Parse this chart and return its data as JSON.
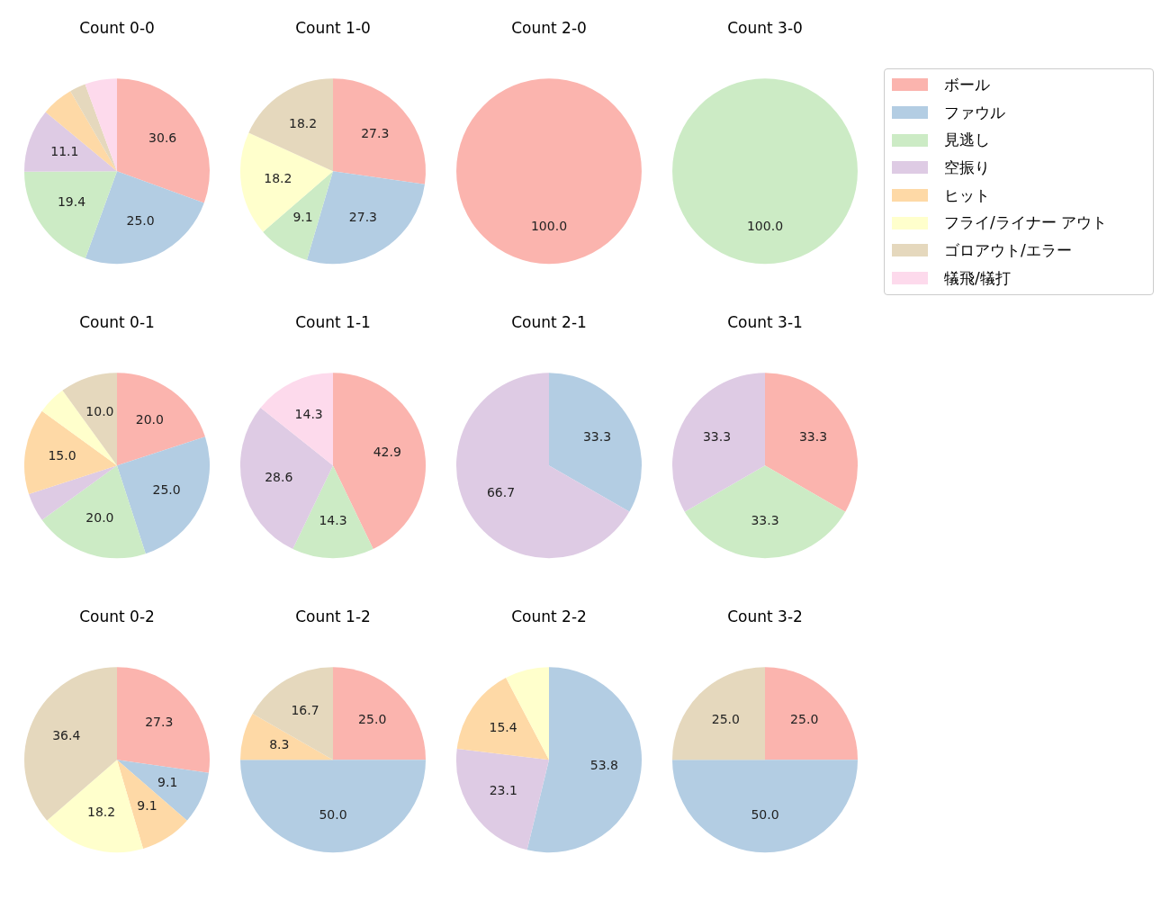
{
  "chart_data": [
    {
      "type": "pie",
      "title": "Count 0-0",
      "legend": "right",
      "categories": [
        "ボール",
        "ファウル",
        "見逃し",
        "空振り",
        "ヒット",
        "フライ/ライナー アウト",
        "ゴロアウト/エラー",
        "犠飛/犠打"
      ],
      "values": [
        30.6,
        25.0,
        19.4,
        11.1,
        5.6,
        0,
        2.8,
        5.6
      ],
      "colors": [
        "#fbb4ae",
        "#b3cde3",
        "#ccebc5",
        "#decbe4",
        "#fed9a6",
        "#ffffcc",
        "#e5d8bd",
        "#fddaec"
      ],
      "value_labels": [
        "30.6",
        "25.0",
        "19.4",
        "11.1",
        null,
        null,
        null,
        null
      ]
    },
    {
      "type": "pie",
      "title": "Count 1-0",
      "categories": [
        null,
        null,
        null,
        null,
        null,
        null,
        null,
        null
      ],
      "values": [
        27.3,
        27.3,
        9.1,
        0,
        0,
        18.2,
        18.2,
        0
      ],
      "colors": [
        "#fbb4ae",
        "#b3cde3",
        "#ccebc5",
        "#decbe4",
        "#fed9a6",
        "#ffffcc",
        "#e5d8bd",
        "#fddaec"
      ],
      "value_labels": [
        "27.3",
        "27.3",
        "9.1",
        null,
        null,
        "18.2",
        "18.2",
        null
      ]
    },
    {
      "type": "pie",
      "title": "Count 2-0",
      "categories": [
        null,
        null,
        null,
        null,
        null,
        null,
        null,
        null
      ],
      "values": [
        100.0,
        0,
        0,
        0,
        0,
        0,
        0,
        0
      ],
      "colors": [
        "#fbb4ae",
        "#b3cde3",
        "#ccebc5",
        "#decbe4",
        "#fed9a6",
        "#ffffcc",
        "#e5d8bd",
        "#fddaec"
      ],
      "value_labels": [
        "100.0",
        null,
        null,
        null,
        null,
        null,
        null,
        null
      ]
    },
    {
      "type": "pie",
      "title": "Count 3-0",
      "categories": [
        null,
        null,
        null,
        null,
        null,
        null,
        null,
        null
      ],
      "values": [
        0,
        0,
        100.0,
        0,
        0,
        0,
        0,
        0
      ],
      "colors": [
        "#fbb4ae",
        "#b3cde3",
        "#ccebc5",
        "#decbe4",
        "#fed9a6",
        "#ffffcc",
        "#e5d8bd",
        "#fddaec"
      ],
      "value_labels": [
        null,
        null,
        "100.0",
        null,
        null,
        null,
        null,
        null
      ]
    },
    {
      "type": "pie",
      "title": "Count 0-1",
      "categories": [
        null,
        null,
        null,
        null,
        null,
        null,
        null,
        null
      ],
      "values": [
        20.0,
        25.0,
        20.0,
        5.0,
        15.0,
        5.0,
        10.0,
        0
      ],
      "colors": [
        "#fbb4ae",
        "#b3cde3",
        "#ccebc5",
        "#decbe4",
        "#fed9a6",
        "#ffffcc",
        "#e5d8bd",
        "#fddaec"
      ],
      "value_labels": [
        "20.0",
        "25.0",
        "20.0",
        null,
        "15.0",
        null,
        "10.0",
        null
      ]
    },
    {
      "type": "pie",
      "title": "Count 1-1",
      "categories": [
        null,
        null,
        null,
        null,
        null,
        null,
        null,
        null
      ],
      "values": [
        42.9,
        0,
        14.3,
        28.6,
        0,
        0,
        0,
        14.3
      ],
      "colors": [
        "#fbb4ae",
        "#b3cde3",
        "#ccebc5",
        "#decbe4",
        "#fed9a6",
        "#ffffcc",
        "#e5d8bd",
        "#fddaec"
      ],
      "value_labels": [
        "42.9",
        null,
        "14.3",
        "28.6",
        null,
        null,
        null,
        "14.3"
      ]
    },
    {
      "type": "pie",
      "title": "Count 2-1",
      "categories": [
        null,
        null,
        null,
        null,
        null,
        null,
        null,
        null
      ],
      "values": [
        0,
        33.3,
        0,
        66.7,
        0,
        0,
        0,
        0
      ],
      "colors": [
        "#fbb4ae",
        "#b3cde3",
        "#ccebc5",
        "#decbe4",
        "#fed9a6",
        "#ffffcc",
        "#e5d8bd",
        "#fddaec"
      ],
      "value_labels": [
        null,
        "33.3",
        null,
        "66.7",
        null,
        null,
        null,
        null
      ]
    },
    {
      "type": "pie",
      "title": "Count 3-1",
      "categories": [
        null,
        null,
        null,
        null,
        null,
        null,
        null,
        null
      ],
      "values": [
        33.3,
        0,
        33.3,
        33.3,
        0,
        0,
        0,
        0
      ],
      "colors": [
        "#fbb4ae",
        "#b3cde3",
        "#ccebc5",
        "#decbe4",
        "#fed9a6",
        "#ffffcc",
        "#e5d8bd",
        "#fddaec"
      ],
      "value_labels": [
        "33.3",
        null,
        "33.3",
        "33.3",
        null,
        null,
        null,
        null
      ]
    },
    {
      "type": "pie",
      "title": "Count 0-2",
      "categories": [
        null,
        null,
        null,
        null,
        null,
        null,
        null,
        null
      ],
      "values": [
        27.3,
        9.1,
        0,
        0,
        9.1,
        18.2,
        36.4,
        0
      ],
      "colors": [
        "#fbb4ae",
        "#b3cde3",
        "#ccebc5",
        "#decbe4",
        "#fed9a6",
        "#ffffcc",
        "#e5d8bd",
        "#fddaec"
      ],
      "value_labels": [
        "27.3",
        "9.1",
        null,
        null,
        "9.1",
        "18.2",
        "36.4",
        null
      ]
    },
    {
      "type": "pie",
      "title": "Count 1-2",
      "categories": [
        null,
        null,
        null,
        null,
        null,
        null,
        null,
        null
      ],
      "values": [
        25.0,
        50.0,
        0,
        0,
        8.3,
        0,
        16.7,
        0
      ],
      "colors": [
        "#fbb4ae",
        "#b3cde3",
        "#ccebc5",
        "#decbe4",
        "#fed9a6",
        "#ffffcc",
        "#e5d8bd",
        "#fddaec"
      ],
      "value_labels": [
        "25.0",
        "50.0",
        null,
        null,
        "8.3",
        null,
        "16.7",
        null
      ]
    },
    {
      "type": "pie",
      "title": "Count 2-2",
      "categories": [
        null,
        null,
        null,
        null,
        null,
        null,
        null,
        null
      ],
      "values": [
        0,
        53.8,
        0,
        23.1,
        15.4,
        7.7,
        0,
        0
      ],
      "colors": [
        "#fbb4ae",
        "#b3cde3",
        "#ccebc5",
        "#decbe4",
        "#fed9a6",
        "#ffffcc",
        "#e5d8bd",
        "#fddaec"
      ],
      "value_labels": [
        null,
        "53.8",
        null,
        "23.1",
        "15.4",
        null,
        null,
        null
      ]
    },
    {
      "type": "pie",
      "title": "Count 3-2",
      "categories": [
        null,
        null,
        null,
        null,
        null,
        null,
        null,
        null
      ],
      "values": [
        25.0,
        50.0,
        0,
        0,
        0,
        0,
        25.0,
        0
      ],
      "colors": [
        "#fbb4ae",
        "#b3cde3",
        "#ccebc5",
        "#decbe4",
        "#fed9a6",
        "#ffffcc",
        "#e5d8bd",
        "#fddaec"
      ],
      "value_labels": [
        "25.0",
        "50.0",
        null,
        null,
        null,
        null,
        "25.0",
        null
      ]
    }
  ]
}
